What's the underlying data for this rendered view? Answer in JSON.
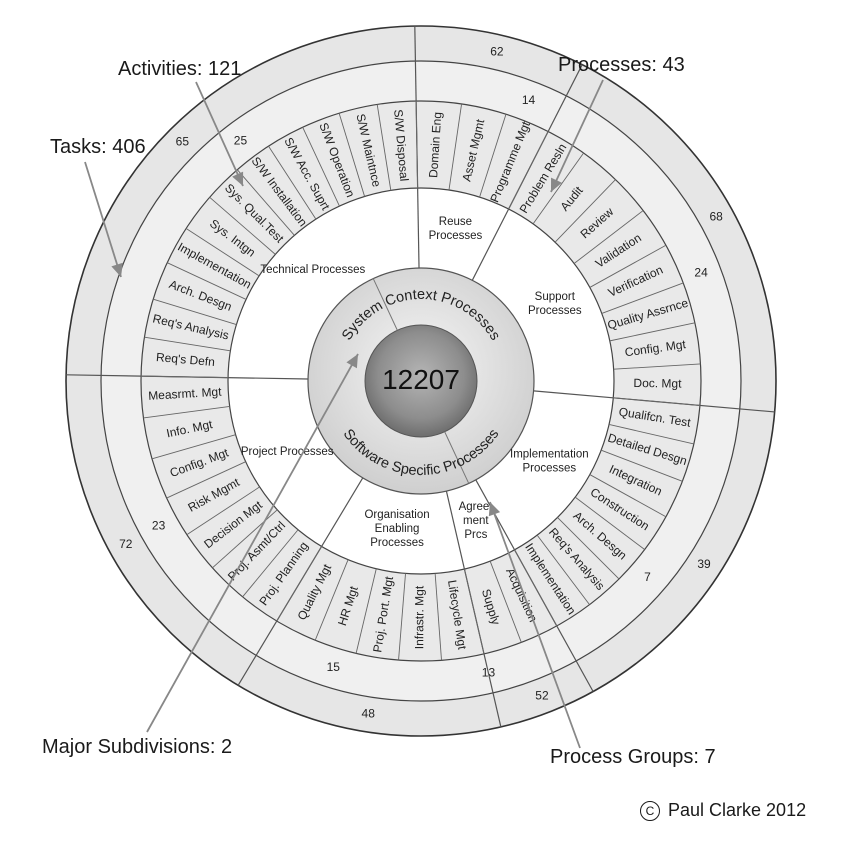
{
  "center": {
    "label": "12207",
    "top_arc": "System Context Processes",
    "bottom_arc": "Software Specific Processes"
  },
  "groups": [
    {
      "label": [
        "Agree-",
        "ment",
        "Prcs"
      ],
      "activities": 13,
      "tasks": 52,
      "processes": [
        "Acquisition",
        "Supply"
      ]
    },
    {
      "label": [
        "Organisation",
        "Enabling",
        "Processes"
      ],
      "activities": 15,
      "tasks": 48,
      "processes": [
        "Lifecycle Mgt",
        "Infrastr. Mgt",
        "Proj. Port. Mgt",
        "HR Mgt",
        "Quality Mgt"
      ]
    },
    {
      "label": [
        "Project Processes"
      ],
      "activities": 23,
      "tasks": 72,
      "processes": [
        "Proj. Planning",
        "Proj. Asmt/Ctrl",
        "Decision Mgt",
        "Risk Mgmt",
        "Config. Mgt",
        "Info. Mgt",
        "Measrmt. Mgt"
      ]
    },
    {
      "label": [
        "Technical Processes"
      ],
      "activities": 25,
      "tasks": 65,
      "processes": [
        "Req's Defn",
        "Req's Analysis",
        "Arch. Desgn",
        "Implementation",
        "Sys. Intgn",
        "Sys. Qual.Test",
        "S/W Installation",
        "S/W Acc. Suprt",
        "S/W Operation",
        "S/W Maintnce",
        "S/W Disposal"
      ]
    },
    {
      "label": [
        "Reuse",
        "Processes"
      ],
      "activities": 14,
      "tasks": 62,
      "processes": [
        "Domain Eng",
        "Asset Mgmt",
        "Programme Mgt"
      ]
    },
    {
      "label": [
        "Support",
        "Processes"
      ],
      "activities": 24,
      "tasks": 68,
      "processes": [
        "Problem Resln",
        "Audit",
        "Review",
        "Validation",
        "Verification",
        "Quality Assrnce",
        "Config. Mgt",
        "Doc. Mgt"
      ]
    },
    {
      "label": [
        "Implementation",
        "Processes"
      ],
      "activities": 7,
      "tasks": 39,
      "processes": [
        "Qualifcn. Test",
        "Detailed Desgn",
        "Integration",
        "Construction",
        "Arch. Desgn",
        "Req's Analysis",
        "Implementation"
      ]
    }
  ],
  "callouts": {
    "activities": "Activities: 121",
    "processes": "Processes: 43",
    "tasks": "Tasks: 406",
    "subdivisions": "Major Subdivisions: 2",
    "groups": "Process Groups: 7"
  },
  "copyright": {
    "symbol": "C",
    "text": "Paul Clarke 2012"
  },
  "colors": {
    "outer_ring": "#e6e6e6",
    "activity_ring": "#f0f0f0",
    "process_ring": "#e9e9e9",
    "group_ring": "#ffffff",
    "inner_ring": "#e3e3e3",
    "core_dark": "#8a8a8a",
    "line": "#555555"
  }
}
